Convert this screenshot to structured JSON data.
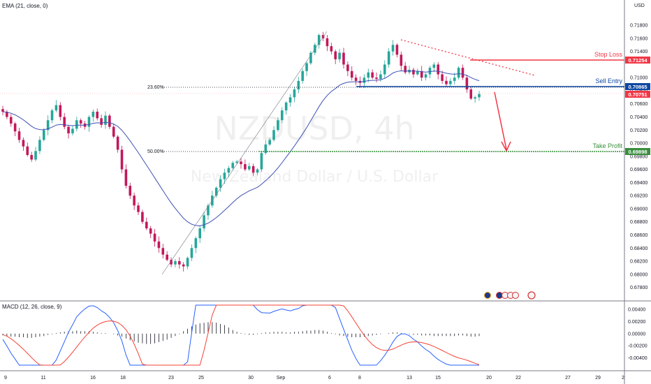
{
  "indicators": {
    "ema_label": "EMA (21, close, 0)",
    "macd_label": "MACD (12, 26, close, 9)"
  },
  "currency": "USD",
  "watermark": {
    "symbol": "NZDUSD, 4h",
    "description": "New Zealand Dollar / U.S. Dollar"
  },
  "fibonacci": {
    "level_1": "23.60%",
    "level_2": "50.00%"
  },
  "annotations": {
    "stop_loss": {
      "label": "Stop Loss",
      "price": "0.71254",
      "color": "#f23645"
    },
    "sell_entry": {
      "label": "Sell Entry",
      "price": "0.70865",
      "color": "#0d47a1"
    },
    "current_price": {
      "price": "0.70751",
      "color": "#f23645"
    },
    "take_profit": {
      "label": "Take Profit",
      "price": "0.69898",
      "color": "#388e3c"
    }
  },
  "colors": {
    "bull": "#26a69a",
    "bear": "#c2185b",
    "ema_line": "#3f51b5",
    "macd_line": "#2962ff",
    "signal_line": "#f44336"
  },
  "chart_data": {
    "type": "candlestick",
    "title": "NZDUSD, 4h",
    "price_axis": {
      "ticks": [
        "0.71800",
        "0.71600",
        "0.71400",
        "0.71000",
        "0.70800",
        "0.70600",
        "0.70400",
        "0.70200",
        "0.70000",
        "0.69800",
        "0.69600",
        "0.69400",
        "0.69200",
        "0.69000",
        "0.68800",
        "0.68600",
        "0.68400",
        "0.68200",
        "0.68000",
        "0.67800"
      ],
      "ylim": [
        0.677,
        0.7195
      ]
    },
    "macd_axis": {
      "ticks": [
        "0.00400",
        "0.00200",
        "0.00000",
        "-0.00200",
        "-0.00400"
      ],
      "ylim": [
        -0.0052,
        0.0047
      ]
    },
    "x_ticks": [
      "9",
      "11",
      "16",
      "18",
      "23",
      "25",
      "30",
      "Sep",
      "6",
      "8",
      "13",
      "15",
      "20",
      "22",
      "27",
      "29",
      "2"
    ],
    "price_path": [
      0.7048,
      0.704,
      0.703,
      0.7018,
      0.7005,
      0.6995,
      0.6982,
      0.6975,
      0.6988,
      0.7005,
      0.702,
      0.7035,
      0.705,
      0.7058,
      0.704,
      0.7025,
      0.7015,
      0.7022,
      0.7035,
      0.703,
      0.7025,
      0.704,
      0.7048,
      0.7038,
      0.7028,
      0.7042,
      0.7025,
      0.701,
      0.699,
      0.696,
      0.6935,
      0.692,
      0.6905,
      0.6895,
      0.688,
      0.687,
      0.6862,
      0.685,
      0.684,
      0.683,
      0.6822,
      0.6815,
      0.682,
      0.6815,
      0.6812,
      0.6825,
      0.684,
      0.6855,
      0.687,
      0.689,
      0.6905,
      0.692,
      0.6932,
      0.6945,
      0.6955,
      0.6962,
      0.697,
      0.6972,
      0.6968,
      0.696,
      0.6965,
      0.6955,
      0.696,
      0.6985,
      0.6998,
      0.7005,
      0.702,
      0.7035,
      0.705,
      0.7062,
      0.707,
      0.7082,
      0.7095,
      0.711,
      0.7122,
      0.7138,
      0.715,
      0.7165,
      0.716,
      0.7148,
      0.714,
      0.7128,
      0.7138,
      0.712,
      0.711,
      0.71,
      0.7095,
      0.7092,
      0.71,
      0.7108,
      0.71,
      0.7098,
      0.7105,
      0.712,
      0.714,
      0.715,
      0.7135,
      0.7118,
      0.7108,
      0.7112,
      0.7105,
      0.711,
      0.71,
      0.7105,
      0.7115,
      0.712,
      0.7105,
      0.7095,
      0.709,
      0.7095,
      0.71,
      0.7115,
      0.71,
      0.7082,
      0.7068,
      0.707,
      0.7075
    ],
    "macd_hist": [
      -0.0003,
      -0.0004,
      -0.0005,
      -0.0005,
      -0.0006,
      -0.0006,
      -0.0007,
      -0.0007,
      -0.0006,
      -0.0005,
      -0.0004,
      -0.0002,
      -0.0001,
      0.0001,
      0.0002,
      0.0003,
      0.0004,
      0.0004,
      0.0005,
      0.0004,
      0.0004,
      0.0004,
      0.0003,
      0.0002,
      0.0001,
      0.0001,
      0.0,
      -0.0001,
      -0.0003,
      -0.0005,
      -0.0008,
      -0.0011,
      -0.0013,
      -0.0015,
      -0.0016,
      -0.0017,
      -0.0017,
      -0.0016,
      -0.0014,
      -0.0012,
      -0.001,
      -0.0007,
      -0.0004,
      -0.0001,
      0.0004,
      0.0008,
      0.0012,
      0.0015,
      0.0017,
      0.0018,
      0.0019,
      0.0019,
      0.0018,
      0.0016,
      0.0014,
      0.001,
      0.0006,
      0.0003,
      0.0001,
      -0.0001,
      -0.0002,
      -0.0002,
      -0.0001,
      0.0001,
      0.0002,
      0.0002,
      0.0003,
      0.0003,
      0.0003,
      0.0002,
      0.0002,
      0.0003,
      0.0003,
      0.0004,
      0.0005,
      0.0005,
      0.0006,
      0.0006,
      0.0005,
      0.0003,
      0.0001,
      -0.0001,
      -0.0003,
      -0.0004,
      -0.0005,
      -0.0006,
      -0.0006,
      -0.0006,
      -0.0005,
      -0.0004,
      -0.0003,
      -0.0002,
      -0.0001,
      0.0,
      0.0001,
      0.0002,
      0.0002,
      0.0001,
      0.0,
      -0.0001,
      -0.0002,
      -0.0002,
      -0.0003,
      -0.0003,
      -0.0003,
      -0.0004,
      -0.0004,
      -0.0004,
      -0.0004,
      -0.0004,
      -0.0004,
      -0.0003,
      -0.0003,
      -0.0004,
      -0.0005,
      -0.0005,
      -0.0004
    ]
  }
}
